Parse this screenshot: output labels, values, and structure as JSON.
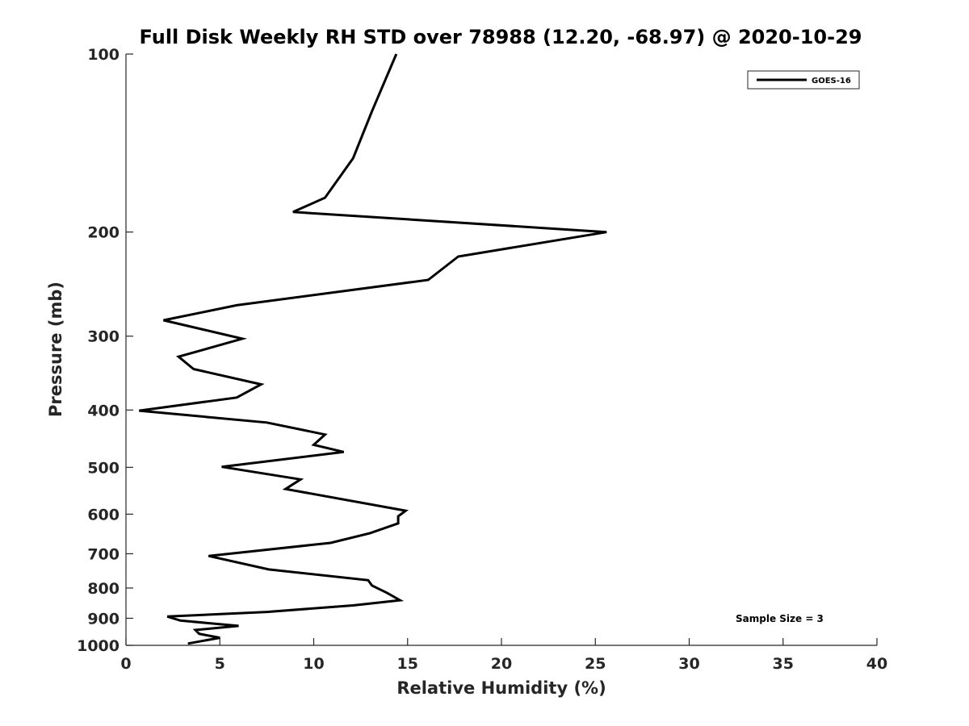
{
  "chart_data": {
    "type": "line",
    "title": "Full Disk Weekly RH STD over 78988 (12.20, -68.97) @ 2020-10-29",
    "xlabel": "Relative Humidity (%)",
    "ylabel": "Pressure (mb)",
    "xlim": [
      0,
      40
    ],
    "ylim": [
      1000,
      100
    ],
    "y_scale": "log",
    "y_reversed": true,
    "x_ticks": [
      0,
      5,
      10,
      15,
      20,
      25,
      30,
      35,
      40
    ],
    "y_ticks": [
      100,
      200,
      300,
      400,
      500,
      600,
      700,
      800,
      900,
      1000
    ],
    "grid": false,
    "legend": {
      "placement": "top-right",
      "entries": [
        "GOES-16"
      ]
    },
    "annotation": "Sample Size = 3",
    "series": [
      {
        "name": "GOES-16",
        "color": "#000000",
        "points": [
          [
            14.4,
            100
          ],
          [
            13.1,
            125
          ],
          [
            12.1,
            150
          ],
          [
            10.6,
            175
          ],
          [
            8.9,
            185
          ],
          [
            25.6,
            200
          ],
          [
            17.7,
            220
          ],
          [
            16.1,
            241
          ],
          [
            5.9,
            266
          ],
          [
            2.0,
            282
          ],
          [
            6.2,
            303
          ],
          [
            2.8,
            325
          ],
          [
            3.6,
            341
          ],
          [
            7.2,
            362
          ],
          [
            5.9,
            381
          ],
          [
            0.7,
            401
          ],
          [
            7.5,
            420
          ],
          [
            10.6,
            440
          ],
          [
            10.0,
            458
          ],
          [
            11.6,
            471
          ],
          [
            5.1,
            499
          ],
          [
            9.3,
            524
          ],
          [
            8.5,
            544
          ],
          [
            14.9,
            592
          ],
          [
            14.5,
            605
          ],
          [
            14.5,
            622
          ],
          [
            13.0,
            646
          ],
          [
            10.9,
            671
          ],
          [
            4.4,
            706
          ],
          [
            7.6,
            744
          ],
          [
            12.9,
            776
          ],
          [
            13.1,
            792
          ],
          [
            13.9,
            815
          ],
          [
            14.6,
            839
          ],
          [
            12.1,
            856
          ],
          [
            7.5,
            878
          ],
          [
            2.2,
            894
          ],
          [
            2.9,
            908
          ],
          [
            6.0,
            927
          ],
          [
            3.7,
            942
          ],
          [
            3.9,
            956
          ],
          [
            5.0,
            971
          ],
          [
            3.3,
            993
          ]
        ]
      }
    ]
  }
}
